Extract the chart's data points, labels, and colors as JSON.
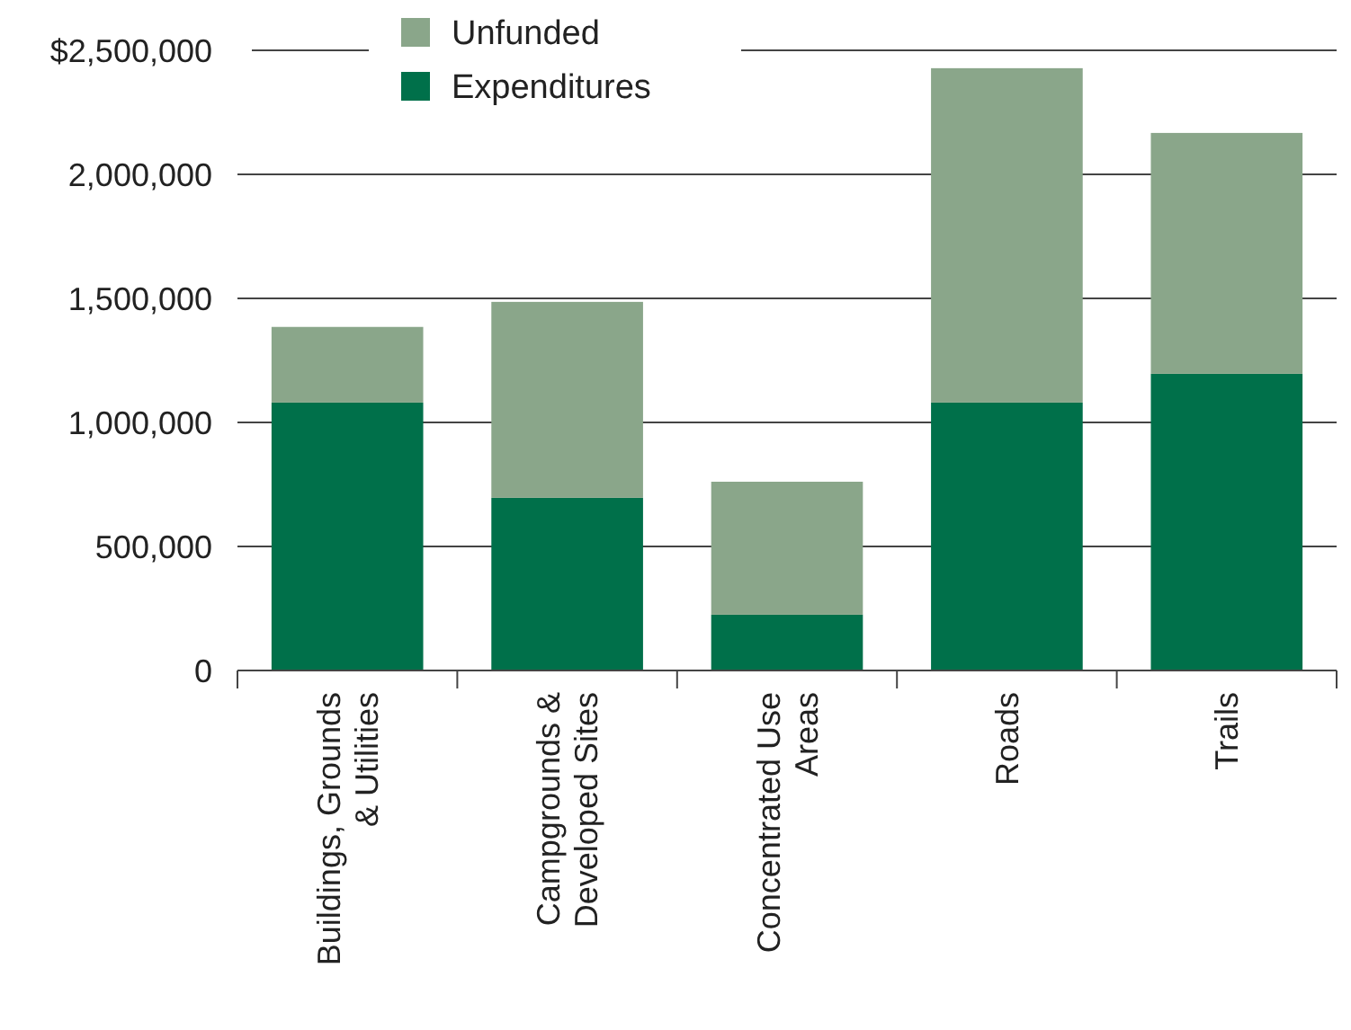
{
  "chart_data": {
    "type": "bar",
    "stacked": true,
    "categories": [
      "Buildings, Grounds & Utilities",
      "Campgrounds & Developed Sites",
      "Concentrated Use Areas",
      "Roads",
      "Trails"
    ],
    "series": [
      {
        "name": "Expenditures",
        "color": "#00704a",
        "values": [
          1080000,
          696000,
          225000,
          1080000,
          1196000
        ]
      },
      {
        "name": "Unfunded",
        "color": "#8aa68a",
        "values": [
          305000,
          790000,
          536000,
          1348000,
          971000
        ]
      }
    ],
    "ylim": [
      0,
      2500000
    ],
    "yticks": [
      0,
      {
        "value": 500000,
        "label": "500,000"
      },
      {
        "value": 1000000,
        "label": "1,000,000"
      },
      {
        "value": 1500000,
        "label": "1,500,000"
      },
      {
        "value": 2000000,
        "label": "2,000,000"
      },
      {
        "value": 2500000,
        "label": "$2,500,000"
      }
    ],
    "grid": "y",
    "legend": "top"
  }
}
